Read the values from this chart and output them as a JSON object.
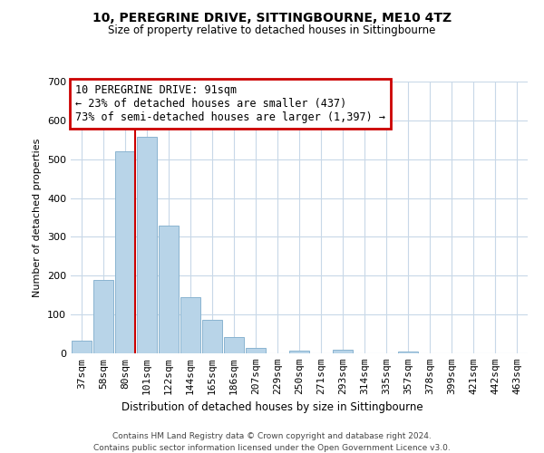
{
  "title": "10, PEREGRINE DRIVE, SITTINGBOURNE, ME10 4TZ",
  "subtitle": "Size of property relative to detached houses in Sittingbourne",
  "xlabel": "Distribution of detached houses by size in Sittingbourne",
  "ylabel": "Number of detached properties",
  "bar_labels": [
    "37sqm",
    "58sqm",
    "80sqm",
    "101sqm",
    "122sqm",
    "144sqm",
    "165sqm",
    "186sqm",
    "207sqm",
    "229sqm",
    "250sqm",
    "271sqm",
    "293sqm",
    "314sqm",
    "335sqm",
    "357sqm",
    "378sqm",
    "399sqm",
    "421sqm",
    "442sqm",
    "463sqm"
  ],
  "bar_values": [
    33,
    190,
    520,
    558,
    330,
    145,
    87,
    42,
    15,
    0,
    8,
    0,
    10,
    0,
    0,
    5,
    0,
    0,
    0,
    0,
    0
  ],
  "bar_color": "#b8d4e8",
  "bar_edge_color": "#8ab4d0",
  "vline_color": "#cc0000",
  "annotation_title": "10 PEREGRINE DRIVE: 91sqm",
  "annotation_line1": "← 23% of detached houses are smaller (437)",
  "annotation_line2": "73% of semi-detached houses are larger (1,397) →",
  "annotation_box_color": "#cc0000",
  "ylim": [
    0,
    700
  ],
  "yticks": [
    0,
    100,
    200,
    300,
    400,
    500,
    600,
    700
  ],
  "footer1": "Contains HM Land Registry data © Crown copyright and database right 2024.",
  "footer2": "Contains public sector information licensed under the Open Government Licence v3.0.",
  "bg_color": "#ffffff",
  "grid_color": "#c8d8e8"
}
